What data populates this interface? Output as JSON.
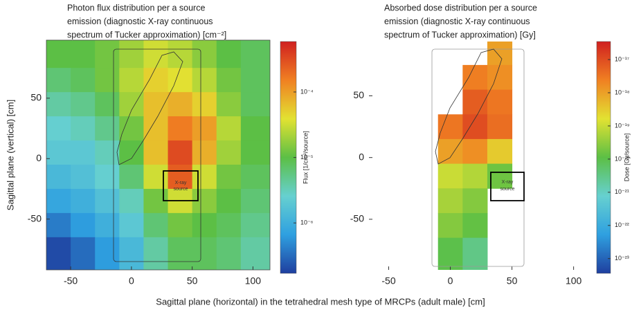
{
  "shared_xlabel": "Sagittal plane (horizontal) in the tetrahedral mesh type of MRCPs (adult male) [cm]",
  "chart_data": [
    {
      "type": "heatmap",
      "title": [
        "Photon flux distribution per a source",
        "emission (diagnostic X-ray continuous",
        "spectrum of Tucker approximation) [cm⁻²]"
      ],
      "ylabel": "Sagittal plane (vertical) [cm]",
      "annotation": [
        "X-ray",
        "source"
      ],
      "xlim": [
        -70,
        114
      ],
      "ylim": [
        -92,
        98
      ],
      "xticks": [
        -50,
        0,
        50,
        100
      ],
      "yticks": [
        -50,
        0,
        50
      ],
      "x": [
        -60,
        -40,
        -20,
        0,
        20,
        40,
        60,
        80,
        100
      ],
      "y": [
        85,
        65,
        45,
        25,
        5,
        -15,
        -35,
        -55,
        -75
      ],
      "z": [
        [
          1e-05,
          1e-05,
          1.26e-05,
          2e-05,
          3.2e-05,
          2.5e-05,
          1.6e-05,
          1e-05,
          7.9e-06
        ],
        [
          6.3e-06,
          7.9e-06,
          1.26e-05,
          2.5e-05,
          5e-05,
          4e-05,
          2.5e-05,
          1.26e-05,
          7.9e-06
        ],
        [
          4e-06,
          5e-06,
          7.9e-06,
          2e-05,
          6.3e-05,
          7.9e-05,
          5e-05,
          1.6e-05,
          7.9e-06
        ],
        [
          2.5e-06,
          3.2e-06,
          5e-06,
          1.26e-05,
          6.3e-05,
          0.00016,
          0.0001,
          2.5e-05,
          1e-05
        ],
        [
          2e-06,
          2e-06,
          3.2e-06,
          1e-05,
          6.3e-05,
          0.00032,
          7.9e-05,
          2e-05,
          1e-05
        ],
        [
          1.3e-06,
          1.6e-06,
          2.5e-06,
          6.3e-06,
          3.2e-05,
          0.00025,
          3.2e-05,
          1.26e-05,
          7.9e-06
        ],
        [
          7.9e-07,
          1e-06,
          1.6e-06,
          3.2e-06,
          1.26e-05,
          3.2e-05,
          1.6e-05,
          1e-05,
          6.3e-06
        ],
        [
          4e-07,
          6.3e-07,
          1e-06,
          2e-06,
          6.3e-06,
          1.26e-05,
          1e-05,
          7.9e-06,
          5e-06
        ],
        [
          2e-07,
          3.2e-07,
          6.3e-07,
          1.3e-06,
          4e-06,
          7.9e-06,
          7.9e-06,
          6.3e-06,
          4e-06
        ]
      ],
      "colormap": [
        "#1f3f9f",
        "#2fa0e0",
        "#66d0d0",
        "#5cbf45",
        "#e2e232",
        "#f08022",
        "#d02020"
      ],
      "colorbar": {
        "label": "Flux [1/cm²/source]",
        "log": true,
        "lim": [
          1.7e-07,
          0.00059
        ],
        "ticks": [
          {
            "value": 0.0001,
            "label": "10⁻⁴"
          },
          {
            "value": 1e-05,
            "label": "10⁻⁵"
          },
          {
            "value": 1e-06,
            "label": "10⁻⁶"
          }
        ]
      }
    },
    {
      "type": "heatmap",
      "title": [
        "Absorbed dose distribution per a source",
        "emission (diagnostic X-ray continuous",
        "spectrum of Tucker approximation) [Gy]"
      ],
      "annotation": [
        "X-ray",
        "source"
      ],
      "xlim": [
        -66,
        112
      ],
      "ylim": [
        -91,
        94
      ],
      "xticks": [
        -50,
        0,
        50,
        100
      ],
      "yticks": [
        -50,
        0,
        50
      ],
      "x": [
        -60,
        -40,
        -20,
        0,
        20,
        40,
        60,
        80,
        100
      ],
      "y": [
        85,
        65,
        45,
        25,
        5,
        -15,
        -35,
        -55,
        -75
      ],
      "z": [
        [
          null,
          null,
          null,
          null,
          null,
          1e-18,
          null,
          null,
          null
        ],
        [
          null,
          null,
          null,
          null,
          2.5e-18,
          1.6e-18,
          null,
          null,
          null
        ],
        [
          null,
          null,
          null,
          null,
          6.3e-18,
          3.2e-18,
          null,
          null,
          null
        ],
        [
          null,
          null,
          null,
          3.2e-18,
          1e-17,
          4e-18,
          null,
          null,
          null
        ],
        [
          null,
          null,
          null,
          1e-18,
          1.6e-18,
          3.2e-19,
          null,
          null,
          null
        ],
        [
          null,
          null,
          null,
          1e-19,
          6.3e-20,
          1.6e-20,
          null,
          null,
          null
        ],
        [
          null,
          null,
          null,
          5e-20,
          2.5e-20,
          null,
          null,
          null,
          null
        ],
        [
          null,
          null,
          null,
          2.5e-20,
          1.3e-20,
          null,
          null,
          null,
          null
        ],
        [
          null,
          null,
          null,
          1e-20,
          3.2e-21,
          null,
          null,
          null,
          null
        ]
      ],
      "colormap": [
        "#1f3f9f",
        "#2fa0e0",
        "#66d0d0",
        "#5cbf45",
        "#e2e232",
        "#f08022",
        "#d02020"
      ],
      "colorbar": {
        "label": "Dose [Gy/source]",
        "log": true,
        "lim": [
          3.6e-24,
          3.5e-17
        ],
        "ticks": [
          {
            "value": 1e-17,
            "label": "10⁻¹⁷"
          },
          {
            "value": 1e-18,
            "label": "10⁻¹⁸"
          },
          {
            "value": 1e-19,
            "label": "10⁻¹⁹"
          },
          {
            "value": 1e-20,
            "label": "10⁻²⁰"
          },
          {
            "value": 1e-21,
            "label": "10⁻²¹"
          },
          {
            "value": 1e-22,
            "label": "10⁻²²"
          },
          {
            "value": 1e-23,
            "label": "10⁻²³"
          }
        ]
      }
    }
  ]
}
